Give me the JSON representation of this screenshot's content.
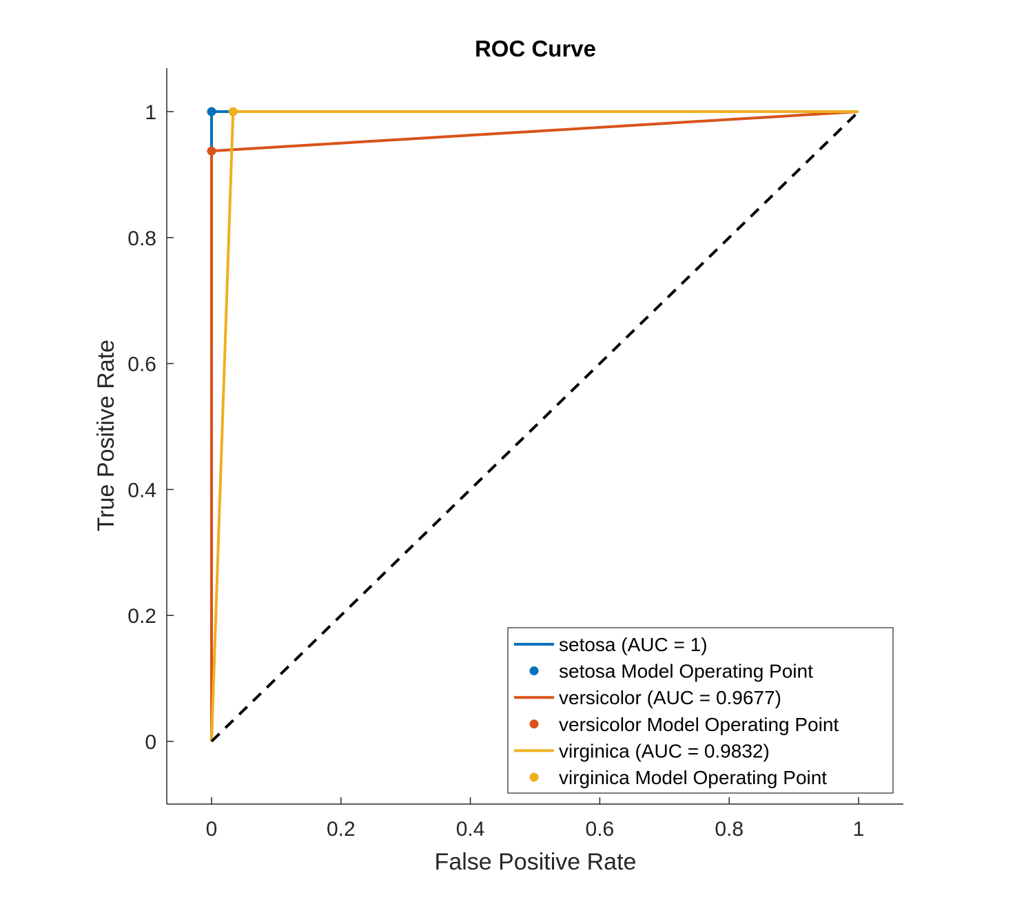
{
  "chart_data": {
    "type": "line",
    "title": "ROC Curve",
    "xlabel": "False Positive Rate",
    "ylabel": "True Positive Rate",
    "xlim": [
      -0.07,
      1.07
    ],
    "ylim": [
      -0.1,
      1.065
    ],
    "xticks": [
      0,
      0.2,
      0.4,
      0.6,
      0.8,
      1
    ],
    "xtick_labels": [
      "0",
      "0.2",
      "0.4",
      "0.6",
      "0.8",
      "1"
    ],
    "yticks": [
      0,
      0.2,
      0.4,
      0.6,
      0.8,
      1
    ],
    "ytick_labels": [
      "0",
      "0.2",
      "0.4",
      "0.6",
      "0.8",
      "1"
    ],
    "grid": false,
    "legend_position": "bottom-right",
    "series": [
      {
        "name": "setosa (AUC = 1)",
        "color": "#0072BD",
        "x": [
          0,
          0,
          1
        ],
        "y": [
          0,
          1,
          1
        ],
        "operating_point": {
          "label": "setosa Model Operating Point",
          "x": 0,
          "y": 1
        }
      },
      {
        "name": "versicolor (AUC = 0.9677)",
        "color": "#D95319",
        "x": [
          0,
          0,
          1
        ],
        "y": [
          0,
          0.9375,
          1
        ],
        "operating_point": {
          "label": "versicolor Model Operating Point",
          "x": 0,
          "y": 0.9375
        }
      },
      {
        "name": "virginica (AUC = 0.9832)",
        "color": "#EDB120",
        "x": [
          0,
          0.0333,
          1
        ],
        "y": [
          0,
          1,
          1
        ],
        "operating_point": {
          "label": "virginica Model Operating Point",
          "x": 0.0333,
          "y": 1
        }
      }
    ],
    "reference_line": {
      "x": [
        0,
        1
      ],
      "y": [
        0,
        1
      ],
      "style": "dashed",
      "color": "#000000"
    }
  }
}
